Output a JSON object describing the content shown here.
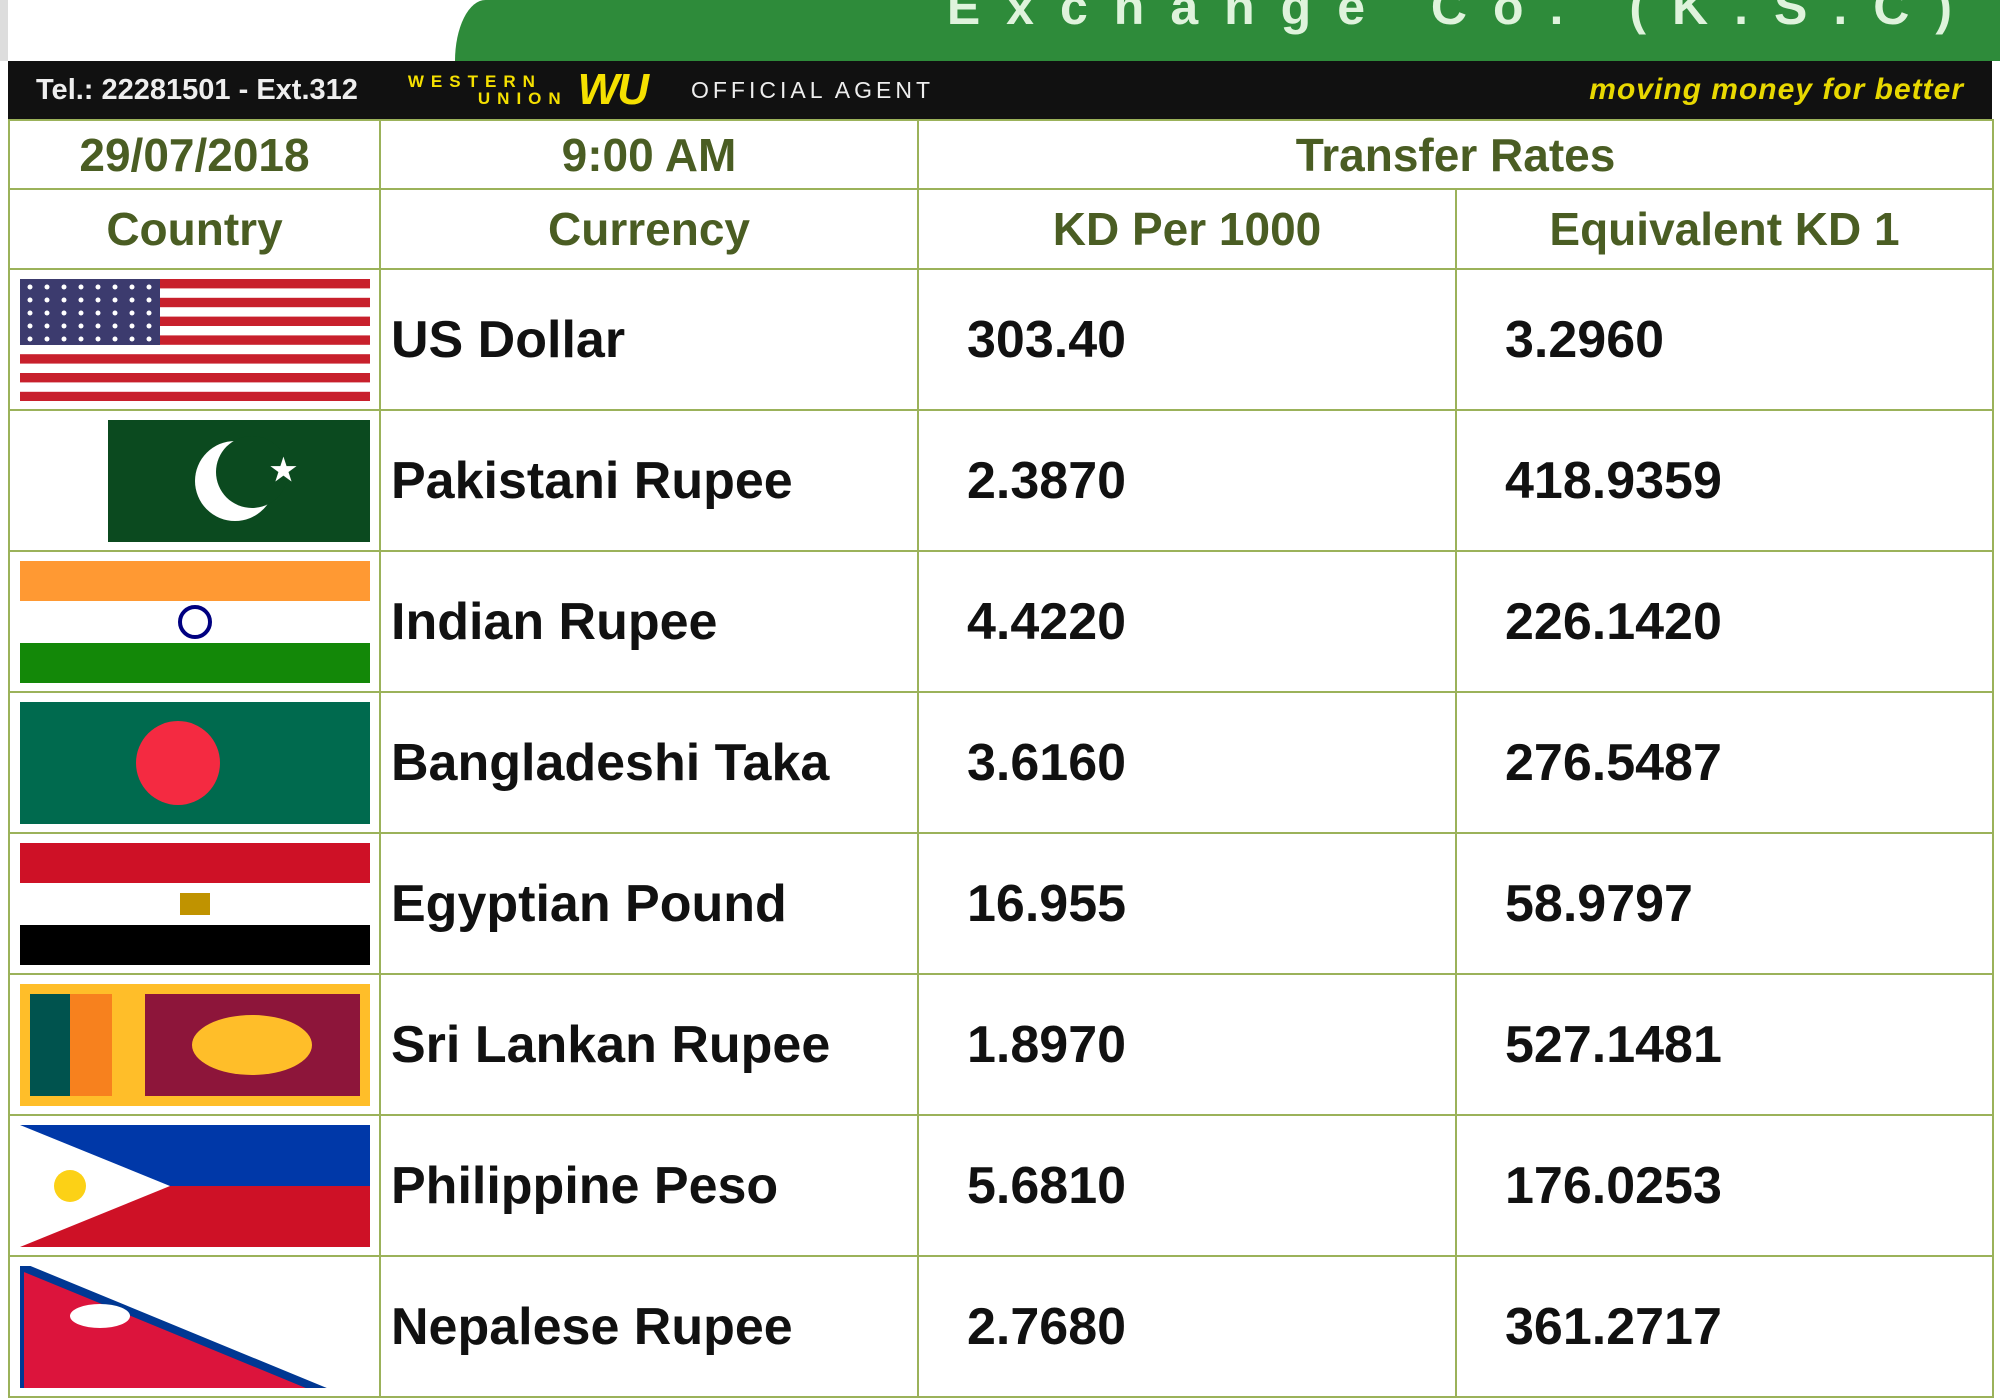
{
  "header": {
    "company": "Exchange Co. (K.S.C)",
    "tel": "Tel.: 22281501 - Ext.312",
    "wu_line1": "WESTERN",
    "wu_line2": "UNION",
    "wu_mark": "WU",
    "official": "OFFICIAL AGENT",
    "tagline": "moving money for better"
  },
  "info": {
    "date": "29/07/2018",
    "time": "9:00 AM",
    "section": "Transfer Rates"
  },
  "columns": {
    "country": "Country",
    "currency": "Currency",
    "kd_per_1000": "KD Per 1000",
    "equivalent": "Equivalent KD 1"
  },
  "rows": [
    {
      "flag": "usa",
      "currency": "US Dollar",
      "kd_per_1000": "303.40",
      "equivalent": "3.2960"
    },
    {
      "flag": "pakistan",
      "currency": "Pakistani Rupee",
      "kd_per_1000": "2.3870",
      "equivalent": "418.9359"
    },
    {
      "flag": "india",
      "currency": "Indian Rupee",
      "kd_per_1000": "4.4220",
      "equivalent": "226.1420"
    },
    {
      "flag": "bangladesh",
      "currency": "Bangladeshi Taka",
      "kd_per_1000": "3.6160",
      "equivalent": "276.5487"
    },
    {
      "flag": "egypt",
      "currency": "Egyptian Pound",
      "kd_per_1000": "16.955",
      "equivalent": "58.9797"
    },
    {
      "flag": "sri-lanka",
      "currency": "Sri Lankan Rupee",
      "kd_per_1000": "1.8970",
      "equivalent": "527.1481"
    },
    {
      "flag": "philippines",
      "currency": "Philippine Peso",
      "kd_per_1000": "5.6810",
      "equivalent": "176.0253"
    },
    {
      "flag": "nepal",
      "currency": "Nepalese Rupee",
      "kd_per_1000": "2.7680",
      "equivalent": "361.2717"
    }
  ]
}
